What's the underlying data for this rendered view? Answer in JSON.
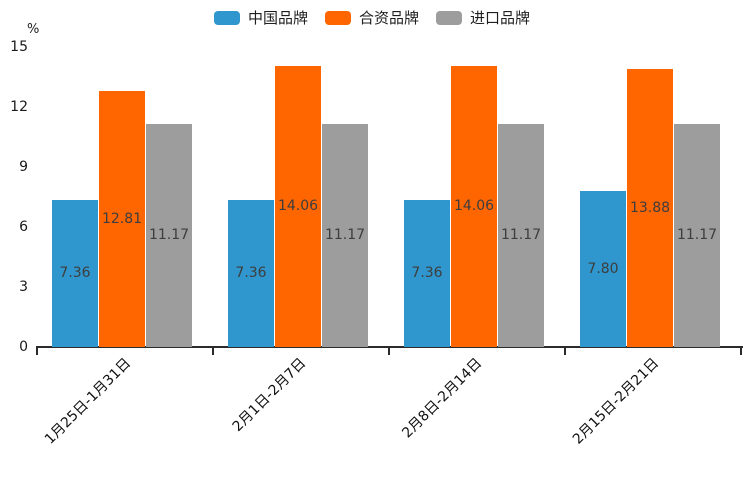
{
  "page": {
    "background": "#ffffff"
  },
  "legend": {
    "items": [
      {
        "label": "中国品牌",
        "color": "#2F97CE"
      },
      {
        "label": "合资品牌",
        "color": "#FF6600"
      },
      {
        "label": "进口品牌",
        "color": "#9D9D9D"
      }
    ]
  },
  "chart_data": {
    "type": "bar",
    "title": "",
    "categories": [
      "1月25日-1月31日",
      "2月1日-2月7日",
      "2月8日-2月14日",
      "2月15日-2月21日"
    ],
    "series": [
      {
        "name": "中国品牌",
        "color": "#2F97CE",
        "values": [
          7.36,
          7.36,
          7.36,
          7.8
        ]
      },
      {
        "name": "合资品牌",
        "color": "#FF6600",
        "values": [
          12.81,
          14.06,
          14.06,
          13.88
        ]
      },
      {
        "name": "进口品牌",
        "color": "#9D9D9D",
        "values": [
          11.17,
          11.17,
          11.17,
          11.17
        ]
      }
    ],
    "xlabel": "",
    "ylabel": "%",
    "yticks": [
      0,
      3,
      6,
      9,
      12,
      15
    ],
    "ylim": [
      0,
      15
    ],
    "grid": false,
    "legend_position": "top",
    "value_label_decimals": 2,
    "value_label_color": "#3d3d3d",
    "axis_color": "#2b2b2b"
  }
}
